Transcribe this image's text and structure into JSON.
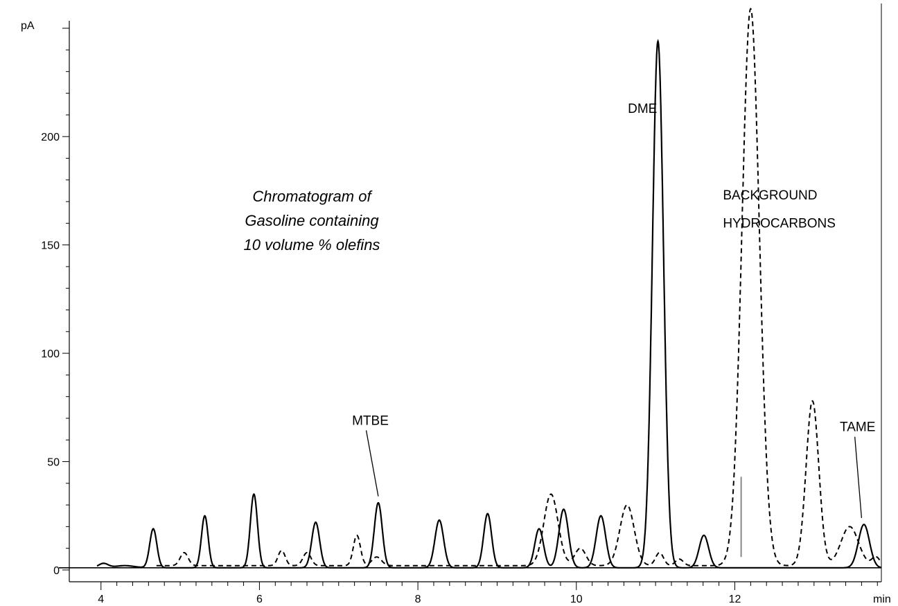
{
  "chart_data": {
    "type": "line",
    "ylabel": "pA",
    "xlabel": "min",
    "xlim": [
      3.6,
      13.85
    ],
    "ylim": [
      -8,
      256
    ],
    "x_ticks": [
      4,
      6,
      8,
      10,
      12
    ],
    "x_tick_labels": [
      "4",
      "6",
      "8",
      "10",
      "12"
    ],
    "y_ticks": [
      0,
      50,
      100,
      150,
      200
    ],
    "y_tick_labels": [
      "0",
      "50",
      "100",
      "150",
      "200"
    ],
    "baseline": 1,
    "grid": false,
    "annotation_text": [
      "Chromatogram of",
      "Gasoline containing",
      "10 volume % olefins"
    ],
    "series": [
      {
        "style": "solid",
        "base_level": 1,
        "peaks": [
          {
            "x": 4.03,
            "h": 2,
            "w": 0.06
          },
          {
            "x": 4.3,
            "h": 1,
            "w": 0.12
          },
          {
            "x": 4.66,
            "h": 18,
            "w": 0.045
          },
          {
            "x": 5.31,
            "h": 24,
            "w": 0.042
          },
          {
            "x": 5.93,
            "h": 34,
            "w": 0.045
          },
          {
            "x": 6.71,
            "h": 21,
            "w": 0.05
          },
          {
            "x": 7.5,
            "h": 30,
            "w": 0.05
          },
          {
            "x": 8.27,
            "h": 22,
            "w": 0.055
          },
          {
            "x": 8.88,
            "h": 25,
            "w": 0.05
          },
          {
            "x": 9.53,
            "h": 18,
            "w": 0.055
          },
          {
            "x": 9.84,
            "h": 27,
            "w": 0.06
          },
          {
            "x": 10.31,
            "h": 24,
            "w": 0.06
          },
          {
            "x": 11.03,
            "h": 243,
            "w": 0.07
          },
          {
            "x": 11.61,
            "h": 15,
            "w": 0.06
          },
          {
            "x": 13.63,
            "h": 20,
            "w": 0.07
          }
        ]
      },
      {
        "style": "dashed",
        "base_level": 2,
        "peaks": [
          {
            "x": 5.05,
            "h": 6,
            "w": 0.05
          },
          {
            "x": 6.28,
            "h": 7,
            "w": 0.045
          },
          {
            "x": 6.6,
            "h": 6,
            "w": 0.05
          },
          {
            "x": 7.23,
            "h": 14,
            "w": 0.045
          },
          {
            "x": 7.48,
            "h": 4,
            "w": 0.06
          },
          {
            "x": 9.68,
            "h": 33,
            "w": 0.09
          },
          {
            "x": 10.05,
            "h": 8,
            "w": 0.07
          },
          {
            "x": 10.64,
            "h": 28,
            "w": 0.09
          },
          {
            "x": 11.05,
            "h": 6,
            "w": 0.05
          },
          {
            "x": 11.3,
            "h": 3,
            "w": 0.05
          },
          {
            "x": 12.2,
            "h": 257,
            "w": 0.11
          },
          {
            "x": 12.98,
            "h": 76,
            "w": 0.08
          },
          {
            "x": 13.45,
            "h": 18,
            "w": 0.11
          },
          {
            "x": 13.78,
            "h": 4,
            "w": 0.05
          }
        ]
      }
    ],
    "peak_labels": [
      {
        "text": "DME",
        "x": 10.65,
        "y": 211,
        "anchor": "start"
      },
      {
        "text": "MTBE",
        "x": 7.4,
        "y": 67,
        "anchor": "middle",
        "pointer_to": [
          7.5,
          34
        ]
      },
      {
        "text": "BACKGROUND",
        "x": 11.85,
        "y": 171,
        "anchor": "start"
      },
      {
        "text": "HYDROCARBONS",
        "x": 11.85,
        "y": 158,
        "anchor": "start"
      },
      {
        "text": "TAME",
        "x": 13.55,
        "y": 64,
        "anchor": "middle",
        "pointer_to": [
          13.6,
          24
        ]
      }
    ],
    "marker_line": {
      "x": 12.08,
      "y0": 6,
      "y1": 43
    }
  }
}
